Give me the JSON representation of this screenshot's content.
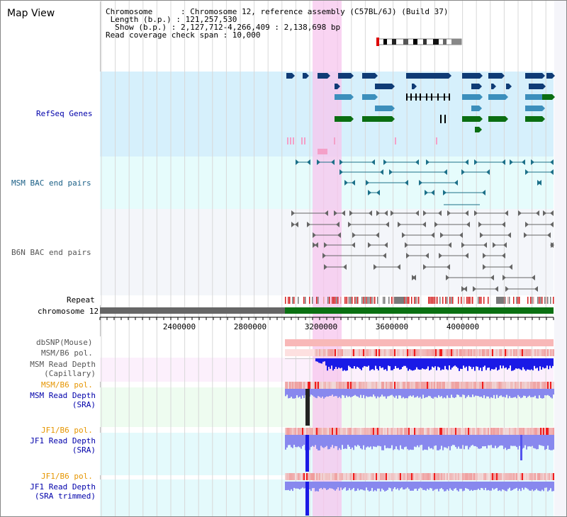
{
  "title": "Map View",
  "info": {
    "chromosome": "Chromosome      : Chromosome 12, reference assembly (C57BL/6J) (Build 37)",
    "length": " Length (b.p.) : 121,257,530",
    "show": "  Show (b.p.) : 2,127,712-4,266,409 : 2,138,698 bp",
    "coverage": "Read coverage check span : 10,000"
  },
  "tracks": {
    "refseq": "RefSeq Genes",
    "msm_bac": "MSM BAC end pairs",
    "b6n_bac": "B6N BAC end pairs",
    "repeat": "Repeat",
    "chromosome": "chromosome 12",
    "dbsnp": "dbSNP(Mouse)",
    "msm_b6_pol_1": "MSM/B6 pol.",
    "msm_depth_cap_1": "MSM Read Depth",
    "msm_depth_cap_2": "(Capillary)",
    "msm_b6_pol_2": "MSM/B6 pol.",
    "msm_depth_sra_1": "MSM Read Depth",
    "msm_depth_sra_2": "(SRA)",
    "jf1_b6_pol_1": "JF1/B6 pol.",
    "jf1_depth_sra_1": "JF1 Read Depth",
    "jf1_depth_sra_2": "(SRA)",
    "jf1_b6_pol_2": "JF1/B6 pol.",
    "jf1_depth_trim_1": "JF1 Read Depth",
    "jf1_depth_trim_2": "(SRA trimmed)"
  },
  "axis": {
    "ticks": [
      "2400000",
      "2800000",
      "3200000",
      "3600000",
      "4000000"
    ]
  },
  "colors": {
    "refseq_bg": "#d6f0fc",
    "bac_bg": "#e6fcfc",
    "b6n_bg": "#f4f6fa",
    "highlight": "#f7c6ee",
    "gene_dark": "#0f3b75",
    "gene_light": "#3c8fbc",
    "gene_green": "#0a6e12",
    "msm_bac_line": "#1c7089",
    "b6n_line": "#666666",
    "pol": "#f07070",
    "depth_cap": "#1a1ae6",
    "depth_sra": "#8888ee",
    "link_blue": "#0000aa",
    "pol_label": "#e69500",
    "teal_label": "#1a5f86"
  }
}
